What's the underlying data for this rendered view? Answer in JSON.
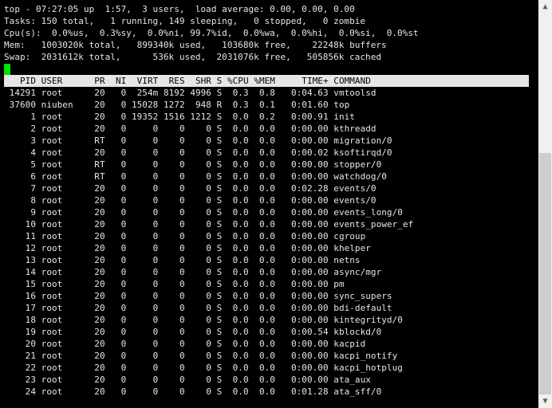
{
  "summary": [
    "top - 07:27:05 up  1:57,  3 users,  load average: 0.00, 0.00, 0.00",
    "Tasks: 150 total,   1 running, 149 sleeping,   0 stopped,   0 zombie",
    "Cpu(s):  0.0%us,  0.3%sy,  0.0%ni, 99.7%id,  0.0%wa,  0.0%hi,  0.0%si,  0.0%st",
    "Mem:   1003020k total,   899340k used,   103680k free,    22248k buffers",
    "Swap:  2031612k total,      536k used,  2031076k free,   505856k cached"
  ],
  "cursor_color": "#00e000",
  "columns": [
    "PID",
    "USER",
    "PR",
    "NI",
    "VIRT",
    "RES",
    "SHR",
    "S",
    "%CPU",
    "%MEM",
    "TIME+",
    "COMMAND"
  ],
  "processes": [
    [
      "14291",
      "root",
      "20",
      "0",
      "254m",
      "8192",
      "4996",
      "S",
      "0.3",
      "0.8",
      "0:04.63",
      "vmtoolsd"
    ],
    [
      "37600",
      "niuben",
      "20",
      "0",
      "15028",
      "1272",
      "948",
      "R",
      "0.3",
      "0.1",
      "0:01.60",
      "top"
    ],
    [
      "1",
      "root",
      "20",
      "0",
      "19352",
      "1516",
      "1212",
      "S",
      "0.0",
      "0.2",
      "0:00.91",
      "init"
    ],
    [
      "2",
      "root",
      "20",
      "0",
      "0",
      "0",
      "0",
      "S",
      "0.0",
      "0.0",
      "0:00.00",
      "kthreadd"
    ],
    [
      "3",
      "root",
      "RT",
      "0",
      "0",
      "0",
      "0",
      "S",
      "0.0",
      "0.0",
      "0:00.00",
      "migration/0"
    ],
    [
      "4",
      "root",
      "20",
      "0",
      "0",
      "0",
      "0",
      "S",
      "0.0",
      "0.0",
      "0:00.02",
      "ksoftirqd/0"
    ],
    [
      "5",
      "root",
      "RT",
      "0",
      "0",
      "0",
      "0",
      "S",
      "0.0",
      "0.0",
      "0:00.00",
      "stopper/0"
    ],
    [
      "6",
      "root",
      "RT",
      "0",
      "0",
      "0",
      "0",
      "S",
      "0.0",
      "0.0",
      "0:00.00",
      "watchdog/0"
    ],
    [
      "7",
      "root",
      "20",
      "0",
      "0",
      "0",
      "0",
      "S",
      "0.0",
      "0.0",
      "0:02.28",
      "events/0"
    ],
    [
      "8",
      "root",
      "20",
      "0",
      "0",
      "0",
      "0",
      "S",
      "0.0",
      "0.0",
      "0:00.00",
      "events/0"
    ],
    [
      "9",
      "root",
      "20",
      "0",
      "0",
      "0",
      "0",
      "S",
      "0.0",
      "0.0",
      "0:00.00",
      "events_long/0"
    ],
    [
      "10",
      "root",
      "20",
      "0",
      "0",
      "0",
      "0",
      "S",
      "0.0",
      "0.0",
      "0:00.00",
      "events_power_ef"
    ],
    [
      "11",
      "root",
      "20",
      "0",
      "0",
      "0",
      "0",
      "S",
      "0.0",
      "0.0",
      "0:00.00",
      "cgroup"
    ],
    [
      "12",
      "root",
      "20",
      "0",
      "0",
      "0",
      "0",
      "S",
      "0.0",
      "0.0",
      "0:00.00",
      "khelper"
    ],
    [
      "13",
      "root",
      "20",
      "0",
      "0",
      "0",
      "0",
      "S",
      "0.0",
      "0.0",
      "0:00.00",
      "netns"
    ],
    [
      "14",
      "root",
      "20",
      "0",
      "0",
      "0",
      "0",
      "S",
      "0.0",
      "0.0",
      "0:00.00",
      "async/mgr"
    ],
    [
      "15",
      "root",
      "20",
      "0",
      "0",
      "0",
      "0",
      "S",
      "0.0",
      "0.0",
      "0:00.00",
      "pm"
    ],
    [
      "16",
      "root",
      "20",
      "0",
      "0",
      "0",
      "0",
      "S",
      "0.0",
      "0.0",
      "0:00.00",
      "sync_supers"
    ],
    [
      "17",
      "root",
      "20",
      "0",
      "0",
      "0",
      "0",
      "S",
      "0.0",
      "0.0",
      "0:00.00",
      "bdi-default"
    ],
    [
      "18",
      "root",
      "20",
      "0",
      "0",
      "0",
      "0",
      "S",
      "0.0",
      "0.0",
      "0:00.00",
      "kintegrityd/0"
    ],
    [
      "19",
      "root",
      "20",
      "0",
      "0",
      "0",
      "0",
      "S",
      "0.0",
      "0.0",
      "0:00.54",
      "kblockd/0"
    ],
    [
      "20",
      "root",
      "20",
      "0",
      "0",
      "0",
      "0",
      "S",
      "0.0",
      "0.0",
      "0:00.00",
      "kacpid"
    ],
    [
      "21",
      "root",
      "20",
      "0",
      "0",
      "0",
      "0",
      "S",
      "0.0",
      "0.0",
      "0:00.00",
      "kacpi_notify"
    ],
    [
      "22",
      "root",
      "20",
      "0",
      "0",
      "0",
      "0",
      "S",
      "0.0",
      "0.0",
      "0:00.00",
      "kacpi_hotplug"
    ],
    [
      "23",
      "root",
      "20",
      "0",
      "0",
      "0",
      "0",
      "S",
      "0.0",
      "0.0",
      "0:00.00",
      "ata_aux"
    ],
    [
      "24",
      "root",
      "20",
      "0",
      "0",
      "0",
      "0",
      "S",
      "0.0",
      "0.0",
      "0:01.28",
      "ata_sff/0"
    ]
  ]
}
